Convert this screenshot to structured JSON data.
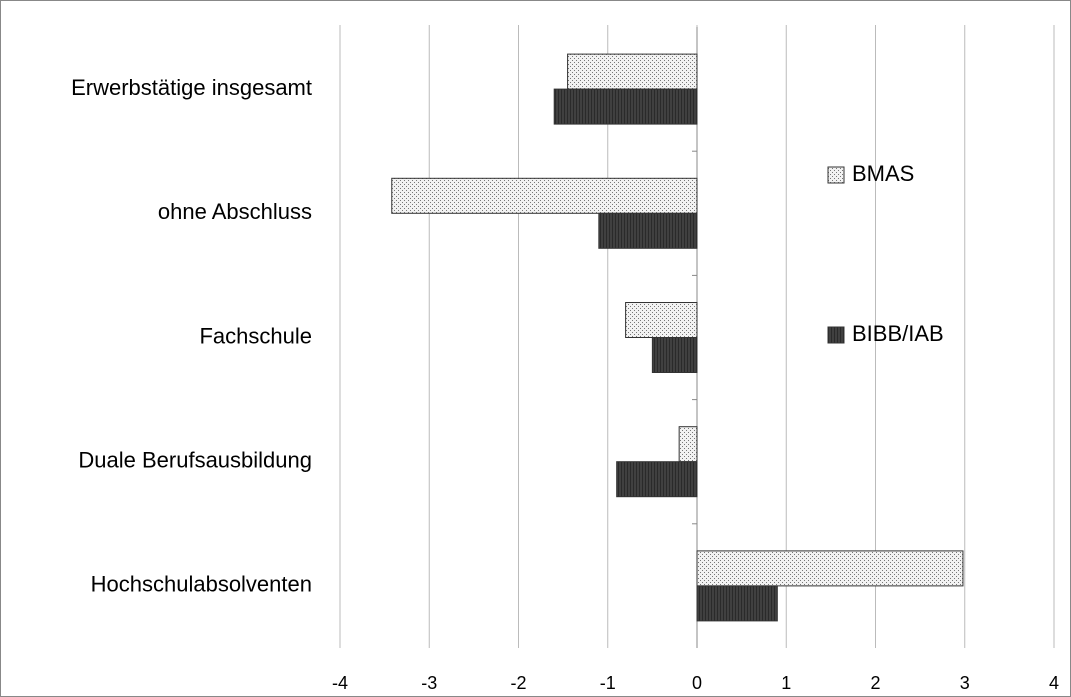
{
  "chart_data": {
    "type": "hbar",
    "categories": [
      "Erwerbstätige insgesamt",
      "ohne Abschluss",
      "Fachschule",
      "Duale Berufsausbildung",
      "Hochschulabsolventen"
    ],
    "series": [
      {
        "name": "BMAS",
        "color": "#d9d9d9",
        "values": [
          -1.45,
          -3.42,
          -0.8,
          -0.2,
          2.98
        ]
      },
      {
        "name": "BIBB/IAB",
        "color": "#404040",
        "values": [
          -1.6,
          -1.1,
          -0.5,
          -0.9,
          0.9
        ]
      }
    ],
    "xlim": [
      -4,
      4
    ],
    "xticks": [
      -4,
      -3,
      -2,
      -1,
      0,
      1,
      2,
      3,
      4
    ],
    "grid": true,
    "legend": "right"
  }
}
